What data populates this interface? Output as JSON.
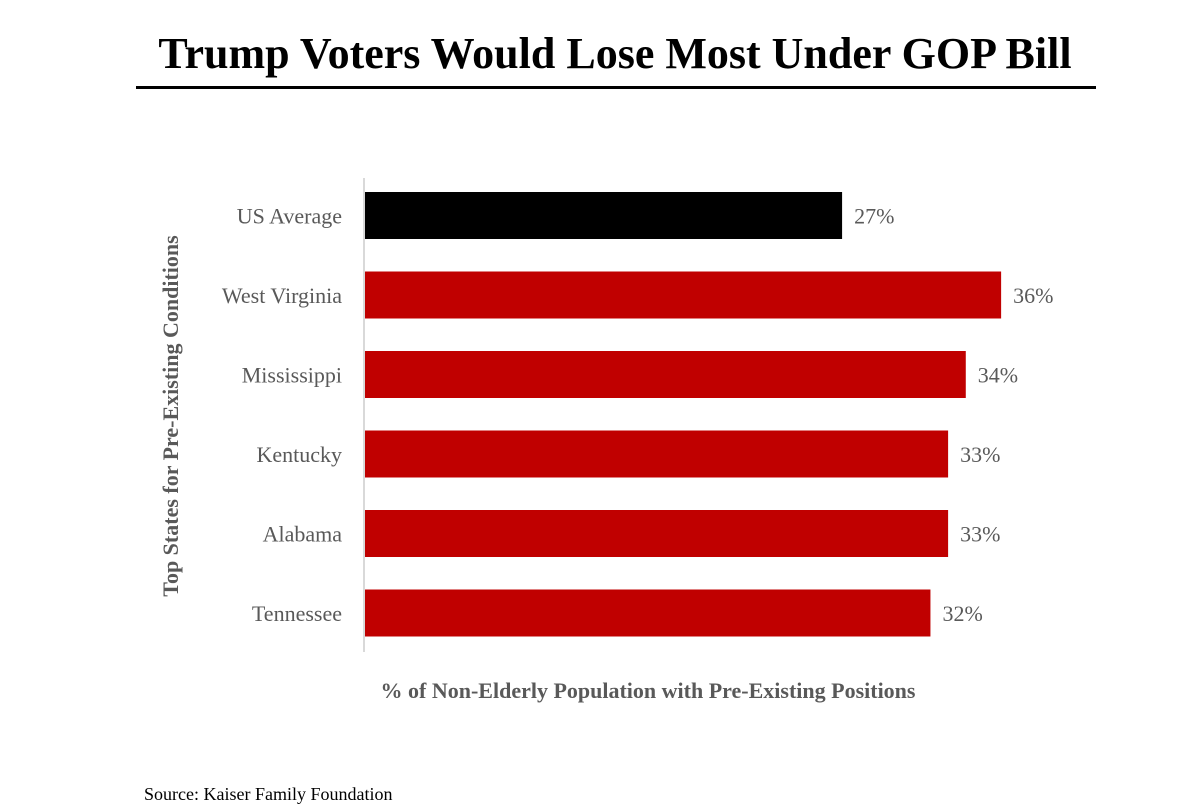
{
  "title": "Trump Voters Would Lose Most Under GOP Bill",
  "source": "Source: Kaiser Family Foundation",
  "colors": {
    "highlight": "#000000",
    "bar": "#c00000",
    "axis": "#d9d9d9",
    "label": "#595959"
  },
  "chart_data": {
    "type": "bar",
    "orientation": "horizontal",
    "title": "Trump Voters Would Lose Most Under GOP Bill",
    "xlabel": "% of Non-Elderly Population with Pre-Existing Positions",
    "ylabel": "Top States for Pre-Existing Conditions",
    "categories": [
      "US Average",
      "West Virginia",
      "Mississippi",
      "Kentucky",
      "Alabama",
      "Tennessee"
    ],
    "values": [
      27,
      36,
      34,
      33,
      33,
      32
    ],
    "data_labels": [
      "27%",
      "36%",
      "34%",
      "33%",
      "33%",
      "32%"
    ],
    "highlight_category": "US Average",
    "xlim": [
      0,
      36
    ],
    "grid": false,
    "legend": "none"
  }
}
